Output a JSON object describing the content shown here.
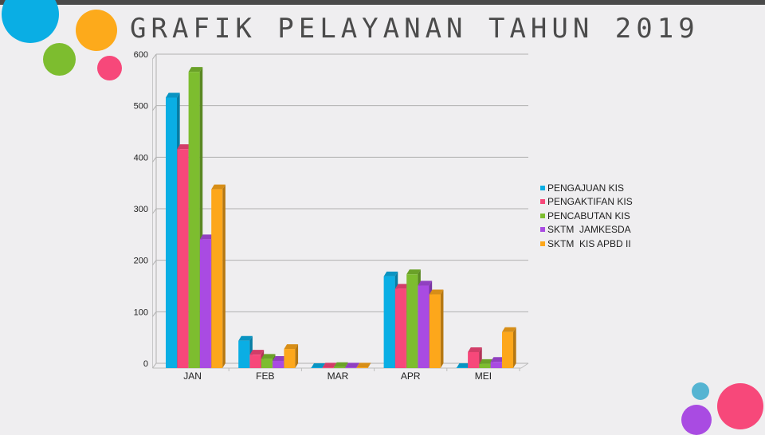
{
  "title": "GRAFIK PELAYANAN TAHUN 2019",
  "colors": {
    "background": "#efeef0",
    "grid": "#b0b0b0",
    "decor_blue": "#0aaee4",
    "decor_orange": "#fdaa1b",
    "decor_green": "#7dbd2f",
    "decor_pink": "#f7487a",
    "decor_purple": "#a94be2",
    "decor_light_blue": "#55b4d2"
  },
  "chart_data": {
    "type": "bar",
    "categories": [
      "JAN",
      "FEB",
      "MAR",
      "APR",
      "MEI"
    ],
    "series": [
      {
        "name": "PENGAJUAN KIS",
        "color": "#0aaee4",
        "values": [
          525,
          53,
          0,
          178,
          0
        ]
      },
      {
        "name": "PENGAKTIFAN KIS",
        "color": "#f7487a",
        "values": [
          425,
          26,
          1,
          154,
          31
        ]
      },
      {
        "name": "PENCABUTAN KIS",
        "color": "#7dbd2f",
        "values": [
          575,
          18,
          2,
          182,
          8
        ]
      },
      {
        "name": "SKTM  JAMKESDA",
        "color": "#a94be2",
        "values": [
          250,
          14,
          1,
          160,
          12
        ]
      },
      {
        "name": "SKTM  KIS APBD II",
        "color": "#fda71b",
        "values": [
          347,
          37,
          1,
          143,
          70
        ]
      }
    ],
    "yticks": [
      0,
      100,
      200,
      300,
      400,
      500,
      600
    ],
    "ylim": [
      0,
      600
    ],
    "grid": true,
    "legend_position": "right",
    "style": "3d"
  }
}
